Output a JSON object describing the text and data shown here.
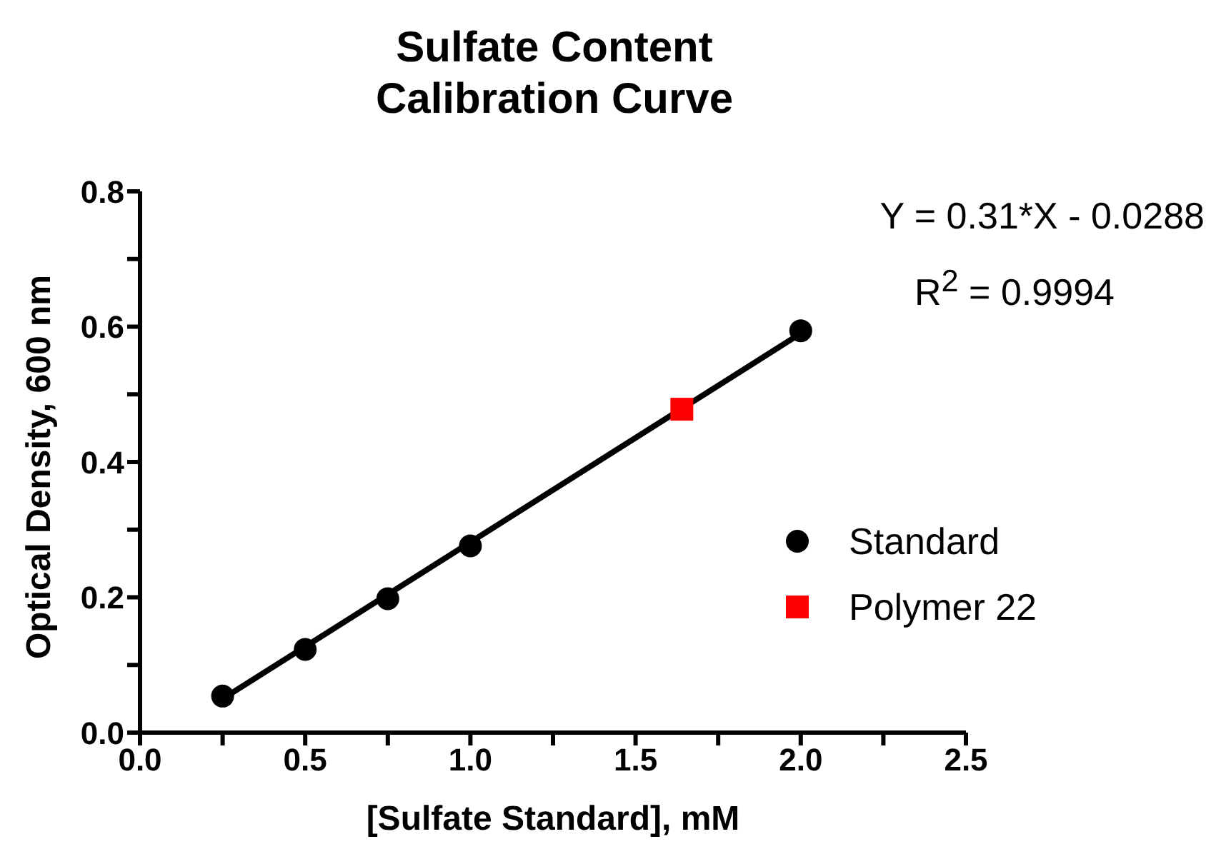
{
  "chart_data": {
    "type": "scatter",
    "title": "Sulfate Content Calibration Curve",
    "xlabel": "[Sulfate Standard], mM",
    "ylabel": "Optical Density, 600 nm",
    "annotations": [
      "Y = 0.31*X - 0.0288",
      "R$^{2}$ = 0.9994"
    ],
    "xlim": [
      0,
      2.5
    ],
    "xticks": [
      {
        "value": 0,
        "label": "0.0"
      },
      {
        "value": 0.25,
        "label": null
      },
      0.5,
      {
        "value": 0.75,
        "label": null
      },
      {
        "value": 1,
        "label": "1.0"
      },
      {
        "value": 1.25,
        "label": null
      },
      1.5,
      {
        "value": 1.75,
        "label": null
      },
      {
        "value": 2,
        "label": "2.0"
      },
      {
        "value": 2.25,
        "label": null
      },
      2.5
    ],
    "ylim": [
      0,
      0.8
    ],
    "yticks": [
      {
        "value": 0,
        "label": "0.0"
      },
      {
        "value": 0.1,
        "label": null
      },
      0.2,
      {
        "value": 0.3,
        "label": null
      },
      0.4,
      {
        "value": 0.5,
        "label": null
      },
      0.6,
      {
        "value": 0.7,
        "label": null
      },
      0.8
    ],
    "grid": false,
    "legend": "right",
    "series": [
      {
        "type": "line",
        "color": "#000000",
        "x": [
          0.25,
          2.0
        ],
        "values": [
          0.05,
          0.59
        ],
        "marker": "none",
        "line_style": "solid"
      },
      {
        "name": "Standard",
        "type": "scatter",
        "color": "#000000",
        "marker": "circle",
        "x": [
          0.25,
          0.5,
          0.75,
          1.0,
          2.0
        ],
        "values": [
          0.054,
          0.123,
          0.198,
          0.276,
          0.594
        ]
      },
      {
        "name": "Polymer 22",
        "type": "scatter",
        "color": "#ff0000",
        "marker": "square",
        "x": [
          1.64
        ],
        "values": [
          0.478
        ]
      }
    ]
  }
}
